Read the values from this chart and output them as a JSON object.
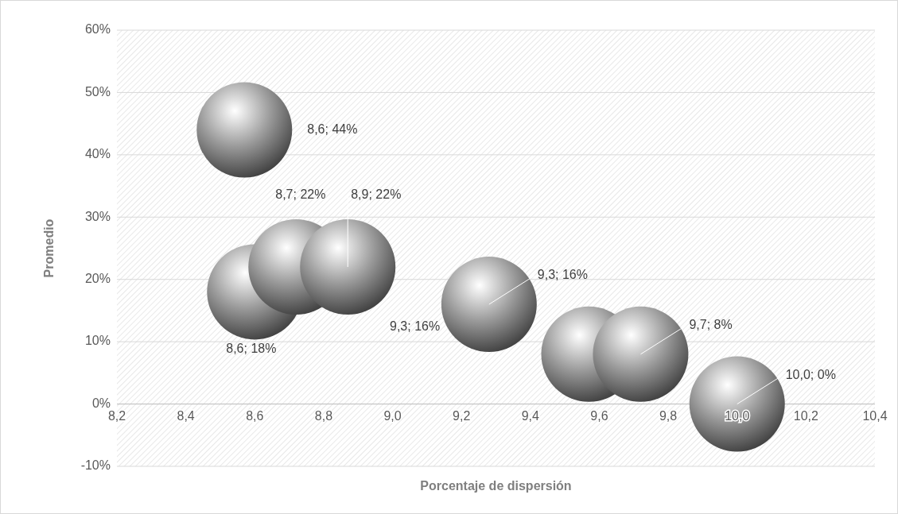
{
  "chart_data": {
    "type": "bubble",
    "xlabel": "Porcentaje de dispersión",
    "ylabel": "Promedio",
    "x": [
      8.57,
      8.6,
      8.72,
      8.87,
      9.28,
      9.57,
      9.72,
      10.0
    ],
    "values": [
      44,
      18,
      22,
      22,
      16,
      8,
      8,
      0
    ],
    "sizes": [
      1,
      1,
      1,
      1,
      1,
      1,
      1,
      1
    ],
    "value_labels": [
      "8,6; 44%",
      "8,6; 18%",
      "8,7; 22%",
      "8,9; 22%",
      "9,3; 16%",
      null,
      "9,7; 8%",
      "10,0; 0%"
    ],
    "annotations": [
      "9,3; 16%"
    ],
    "color": "#9a9a9a",
    "xlim": [
      8.2,
      10.4
    ],
    "xticks": [
      {
        "value": 8.2,
        "label": "8,2"
      },
      {
        "value": 8.4,
        "label": "8,4"
      },
      {
        "value": 8.6,
        "label": "8,6"
      },
      {
        "value": 8.8,
        "label": "8,8"
      },
      {
        "value": 9.0,
        "label": "9,0"
      },
      {
        "value": 9.2,
        "label": "9,2"
      },
      {
        "value": 9.4,
        "label": "9,4"
      },
      {
        "value": 9.6,
        "label": "9,6"
      },
      {
        "value": 9.8,
        "label": "9,8"
      },
      {
        "value": 10.0,
        "label": "10,0"
      },
      {
        "value": 10.2,
        "label": "10,2"
      },
      {
        "value": 10.4,
        "label": "10,4"
      }
    ],
    "ylim": [
      -10,
      60
    ],
    "yticks": [
      {
        "value": -10,
        "label": "-10%"
      },
      {
        "value": 0,
        "label": "0%"
      },
      {
        "value": 10,
        "label": "10%"
      },
      {
        "value": 20,
        "label": "20%"
      },
      {
        "value": 30,
        "label": "30%"
      },
      {
        "value": 40,
        "label": "40%"
      },
      {
        "value": 50,
        "label": "50%"
      },
      {
        "value": 60,
        "label": "60%"
      }
    ],
    "grid": "y"
  }
}
